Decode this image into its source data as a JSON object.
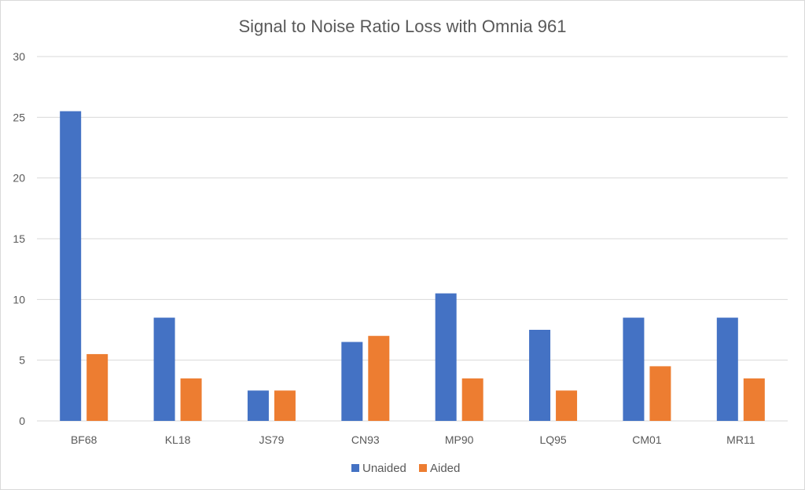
{
  "chart_data": {
    "type": "bar",
    "title": "Signal to Noise Ratio Loss with Omnia 961",
    "xlabel": "",
    "ylabel": "",
    "categories": [
      "BF68",
      "KL18",
      "JS79",
      "CN93",
      "MP90",
      "LQ95",
      "CM01",
      "MR11"
    ],
    "series": [
      {
        "name": "Unaided",
        "color": "#4472C4",
        "values": [
          25.5,
          8.5,
          2.5,
          6.5,
          10.5,
          7.5,
          8.5,
          8.5
        ]
      },
      {
        "name": "Aided",
        "color": "#ED7D31",
        "values": [
          5.5,
          3.5,
          2.5,
          7.0,
          3.5,
          2.5,
          4.5,
          3.5
        ]
      }
    ],
    "ylim": [
      0,
      30
    ],
    "yticks": [
      "0",
      "5",
      "10",
      "15",
      "20",
      "25",
      "30"
    ],
    "grid": true,
    "legend": "bottom-center"
  }
}
